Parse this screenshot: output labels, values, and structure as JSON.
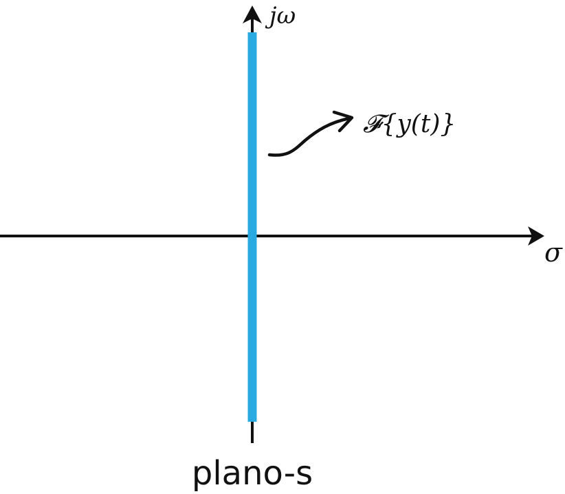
{
  "axes": {
    "vertical_label": "jω",
    "horizontal_label": "σ"
  },
  "annotation": {
    "text": "𝓕{y(t)}"
  },
  "caption": "plano-s",
  "colors": {
    "axis": "#111111",
    "imaginary_axis_highlight": "#29abe2",
    "background": "#ffffff"
  }
}
